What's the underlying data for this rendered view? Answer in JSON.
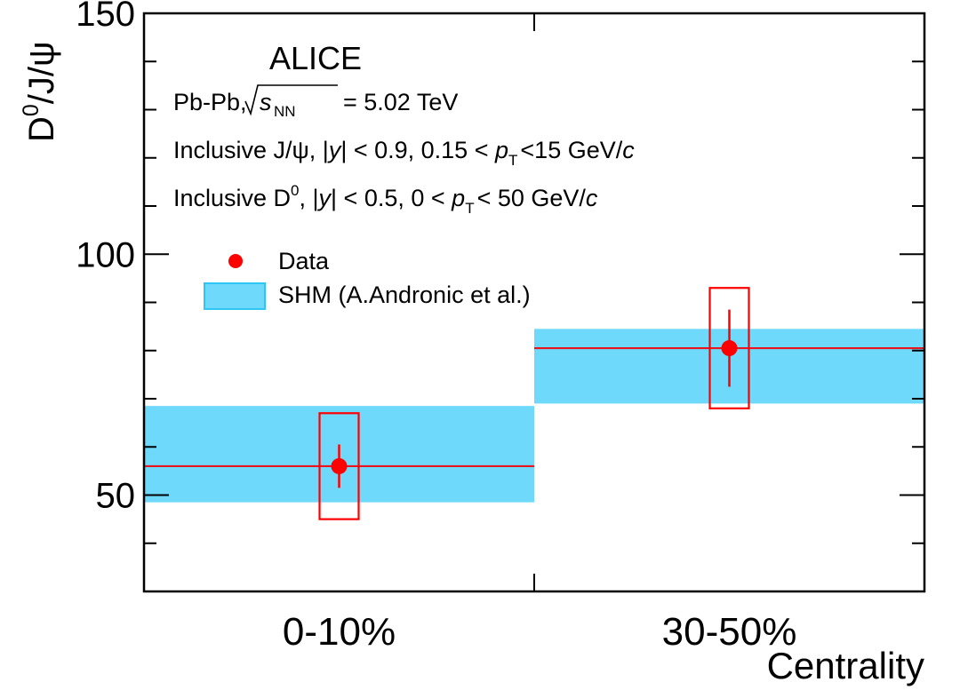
{
  "chart_data": {
    "type": "bar",
    "experiment": "ALICE",
    "annotations": [
      {
        "text": "Pb-Pb, √sNN = 5.02 TeV"
      },
      {
        "text": "Inclusive J/ψ, |y| < 0.9, 0.15 < pT <15 GeV/c"
      },
      {
        "text": "Inclusive D0, |y| < 0.5, 0 < pT < 50 GeV/c"
      }
    ],
    "ylabel": "D0/J/ψ",
    "xlabel": "Centrality",
    "ylim": [
      30,
      150
    ],
    "yticks": [
      50,
      100,
      150
    ],
    "categories": [
      "0-10%",
      "30-50%"
    ],
    "series": [
      {
        "name": "Data",
        "kind": "points",
        "values": [
          56,
          80.5
        ],
        "stat_err": [
          4.5,
          8
        ],
        "syst_err": [
          11,
          12.5
        ],
        "color": "#ff0000"
      },
      {
        "name": "SHM (A.Andronic et al.)",
        "kind": "band",
        "central": [
          56,
          80.5
        ],
        "low": [
          48.5,
          69
        ],
        "high": [
          68.5,
          84.5
        ],
        "fill": "#6fd9fc",
        "line": "#e8141e"
      }
    ]
  }
}
